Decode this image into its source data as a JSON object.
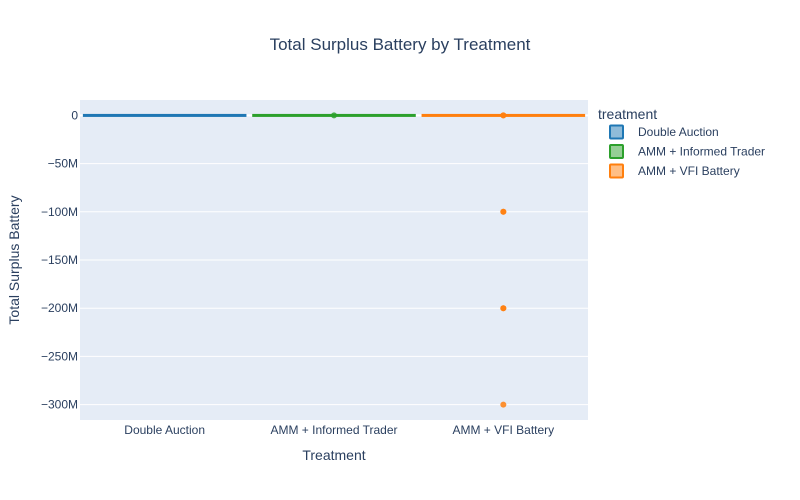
{
  "chart_data": {
    "type": "box",
    "title": "Total Surplus Battery by Treatment",
    "xlabel": "Treatment",
    "ylabel": "Total Surplus Battery",
    "categories": [
      "Double Auction",
      "AMM + Informed Trader",
      "AMM + VFI Battery"
    ],
    "ylim": [
      -316000000,
      16000000
    ],
    "yticks": [
      0,
      -50000000,
      -100000000,
      -150000000,
      -200000000,
      -250000000,
      -300000000
    ],
    "ytick_labels": [
      "0",
      "−50M",
      "−100M",
      "−150M",
      "−200M",
      "−250M",
      "−300M"
    ],
    "grid": true,
    "legend": {
      "title": "treatment",
      "placement": "right"
    },
    "series": [
      {
        "name": "Double Auction",
        "color": "#1f77b4",
        "median": 0,
        "q1": 0,
        "q3": 0,
        "outliers": []
      },
      {
        "name": "AMM + Informed Trader",
        "color": "#2ca02c",
        "median": 0,
        "q1": 0,
        "q3": 0,
        "outliers": [
          0
        ]
      },
      {
        "name": "AMM + VFI Battery",
        "color": "#ff7f0e",
        "median": 0,
        "q1": 0,
        "q3": 0,
        "outliers": [
          0,
          0,
          -100000000,
          -100000000,
          -200000000,
          -200000000,
          -300000000
        ]
      }
    ]
  }
}
